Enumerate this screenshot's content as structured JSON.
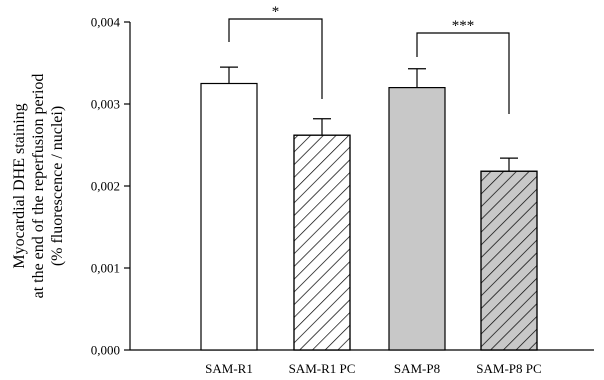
{
  "chart_data": {
    "type": "bar",
    "categories": [
      "SAM-R1",
      "SAM-R1 PC",
      "SAM-P8",
      "SAM-P8 PC"
    ],
    "values": [
      0.00325,
      0.00262,
      0.0032,
      0.00218
    ],
    "errors": [
      0.0002,
      0.0002,
      0.00023,
      0.00016
    ],
    "bar_styles": [
      {
        "fill": "#ffffff",
        "hatch": false
      },
      {
        "fill": "#ffffff",
        "hatch": true
      },
      {
        "fill": "#c8c8c8",
        "hatch": false
      },
      {
        "fill": "#c8c8c8",
        "hatch": true
      }
    ],
    "ylabel_lines": [
      "Myocardial DHE staining",
      "at the end of the reperfusion period",
      "(% fluorescence / nuclei)"
    ],
    "xlabel": "",
    "ylim": [
      0,
      0.004
    ],
    "yticks": [
      0,
      0.001,
      0.002,
      0.003,
      0.004
    ],
    "ytick_labels": [
      "0,000",
      "0,001",
      "0,002",
      "0,003",
      "0,004"
    ],
    "significance": [
      {
        "from": 0,
        "to": 1,
        "label": "*"
      },
      {
        "from": 2,
        "to": 3,
        "label": "***"
      }
    ],
    "grid": false,
    "colors": {
      "axis": "#000000",
      "bar_edge": "#000000",
      "grey_fill": "#c8c8c8",
      "white_fill": "#ffffff"
    }
  }
}
